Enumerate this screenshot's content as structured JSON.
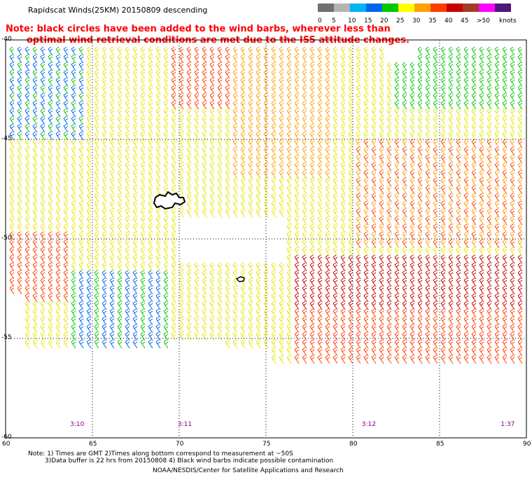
{
  "title": "Rapidscat Winds(25KM) 20150809 descending",
  "note": {
    "line1": "Note: black circles have been added to the wind barbs, wherever less than",
    "line2": "optimal wind retrieval conditions are met due to the ISS attitude changes."
  },
  "legend": {
    "unit_label": "knots",
    "bins": [
      {
        "label": "0",
        "color": "#707070"
      },
      {
        "label": "5",
        "color": "#b4b4b4"
      },
      {
        "label": "10",
        "color": "#00b4f0"
      },
      {
        "label": "15",
        "color": "#0064f0"
      },
      {
        "label": "20",
        "color": "#00c800"
      },
      {
        "label": "25",
        "color": "#ffff00"
      },
      {
        "label": "30",
        "color": "#ffa000"
      },
      {
        "label": "35",
        "color": "#ff3c00"
      },
      {
        "label": "40",
        "color": "#c80000"
      },
      {
        "label": "45",
        "color": "#a03c28"
      },
      {
        "label": ">50",
        "color": "#ff00ff"
      },
      {
        "label": "",
        "color": "#50147a"
      }
    ]
  },
  "axes": {
    "lon_ticks": [
      "60",
      "65",
      "70",
      "75",
      "80",
      "85",
      "90"
    ],
    "lat_ticks": [
      "-40",
      "-45",
      "-50",
      "-55",
      "-60"
    ],
    "lon_range": [
      60,
      90
    ],
    "lat_range": [
      -60,
      -40
    ],
    "grid": "dotted"
  },
  "times": [
    {
      "label": "3:10",
      "lon": 64.2
    },
    {
      "label": "3:11",
      "lon": 70.4
    },
    {
      "label": "3:12",
      "lon": 81.0
    },
    {
      "label": "1:37",
      "lon": 89.0
    }
  ],
  "footnotes": {
    "line1": "Note: 1) Times are GMT 2)Times along bottom correspond to measurement at ~50S",
    "line2": "3)Data buffer is 22 hrs from 20150808 4) Black wind barbs indicate possible contamination",
    "line3": "NOAA/NESDIS/Center for Satellite Applications and Research"
  }
}
